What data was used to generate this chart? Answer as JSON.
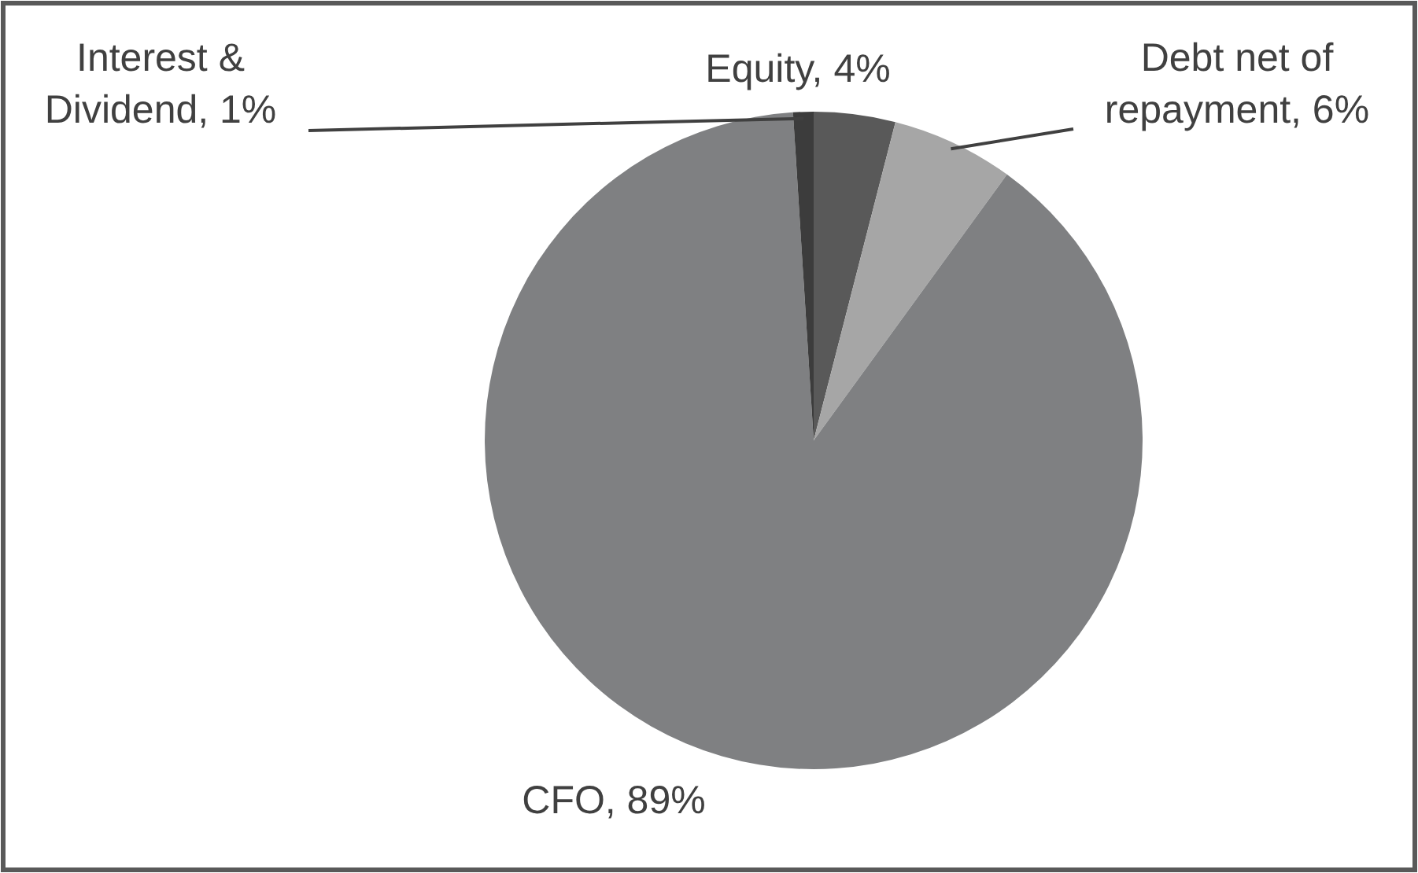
{
  "chart_data": {
    "type": "pie",
    "categories": [
      "Equity",
      "Debt net of repayment",
      "CFO",
      "Interest & Dividend"
    ],
    "values": [
      4,
      6,
      89,
      1
    ],
    "value_labels": [
      "4%",
      "6%",
      "89%",
      "1%"
    ],
    "colors": [
      "#595959",
      "#a6a6a6",
      "#7f8082",
      "#3c3c3c"
    ]
  }
}
